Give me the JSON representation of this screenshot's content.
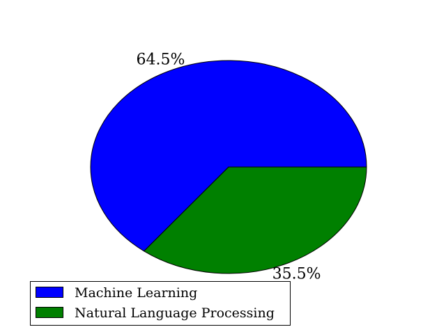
{
  "chart_data": {
    "type": "pie",
    "title": "",
    "slices": [
      {
        "label": "Machine Learning",
        "value": 64.5,
        "display": "64.5%",
        "color": "#0000ff"
      },
      {
        "label": "Natural Language Processing",
        "value": 35.5,
        "display": "35.5%",
        "color": "#008000"
      }
    ],
    "start_angle_deg": 0,
    "direction": "counterclockwise",
    "legend_placement": "lower-left"
  }
}
